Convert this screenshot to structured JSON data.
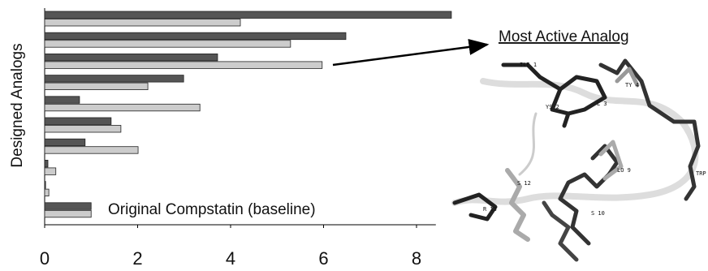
{
  "chart_data": {
    "type": "bar",
    "orientation": "horizontal",
    "y_label": "Designed Analogs",
    "categories": [
      null,
      null,
      null,
      null,
      null,
      null,
      null,
      null,
      null,
      null
    ],
    "series": [
      {
        "color": "#555555",
        "values": [
          8.75,
          6.48,
          3.72,
          2.99,
          0.75,
          1.43,
          0.87,
          0.07,
          0.02,
          1.0
        ]
      },
      {
        "color": "#cccccc",
        "values": [
          4.21,
          5.29,
          5.97,
          2.22,
          3.34,
          1.64,
          2.01,
          0.24,
          0.09,
          1.0
        ]
      }
    ],
    "xlim": [
      0,
      8.8
    ],
    "xticks": [
      0,
      2,
      4,
      6,
      8
    ],
    "annotations": {
      "most_active": "Most Active Analog",
      "baseline": "Original Compstatin (baseline)"
    },
    "molecule_labels": [
      "ILE 1",
      "YS 2",
      "L 3",
      "TY 4",
      "TRP",
      "LO 9",
      "S 12",
      "S 10",
      "R 13"
    ]
  }
}
